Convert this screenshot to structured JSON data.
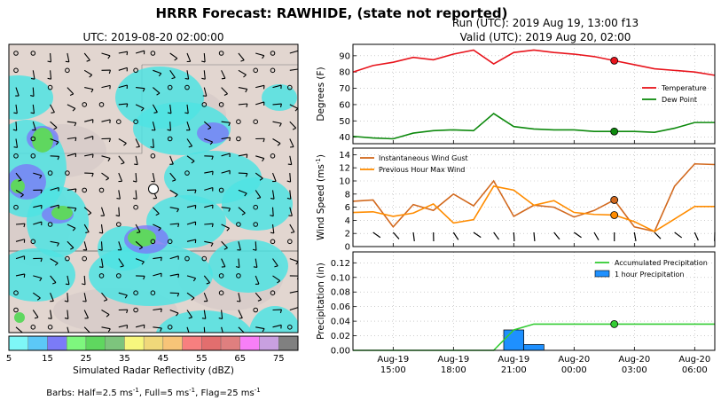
{
  "figure": {
    "title": "HRRR Forecast: RAWHIDE, (state not reported)",
    "run_label": "Run (UTC): 2019 Aug 19, 13:00 f13",
    "valid_label": "Valid (UTC): 2019 Aug 20, 02:00"
  },
  "map_panel": {
    "title": "UTC: 2019-08-20 02:00:00",
    "colorbar_label": "Simulated Radar Reflectivity (dBZ)",
    "colorbar_colors": [
      "#7ef7f7",
      "#5cc8f7",
      "#7b7bf7",
      "#7ef77e",
      "#5fd75f",
      "#7dc47d",
      "#f7f77e",
      "#f0d87a",
      "#f7c478",
      "#f77f7f",
      "#e26e6e",
      "#df7f7f",
      "#f77ff7",
      "#c8a0e0",
      "#808080"
    ],
    "colorbar_ticks": [
      "5",
      "15",
      "25",
      "35",
      "45",
      "55",
      "65",
      "75"
    ],
    "barb_note_prefix": "Barbs: Half=2.5 ms",
    "barb_note_mid1": ", Full=5 ms",
    "barb_note_mid2": ", Flag=25 ms",
    "barb_note_sup": "-1",
    "background_color": "#e2d6d0",
    "echo_color": "#4fe3e3"
  },
  "time_axis": {
    "tick_labels": [
      [
        "Aug-19",
        "15:00"
      ],
      [
        "Aug-19",
        "18:00"
      ],
      [
        "Aug-19",
        "21:00"
      ],
      [
        "Aug-20",
        "00:00"
      ],
      [
        "Aug-20",
        "03:00"
      ],
      [
        "Aug-20",
        "06:00"
      ]
    ],
    "tick_hours": [
      15,
      18,
      21,
      24,
      27,
      30
    ],
    "start_hour": 13,
    "end_hour": 31,
    "marker_hour": 26
  },
  "chart_data": [
    {
      "type": "line",
      "ylabel": "Degrees (F)",
      "ylim": [
        36,
        97
      ],
      "yticks": [
        40,
        50,
        60,
        70,
        80,
        90
      ],
      "grid": true,
      "legend_position": "right",
      "x": [
        13,
        14,
        15,
        16,
        17,
        18,
        19,
        20,
        21,
        22,
        23,
        24,
        25,
        26,
        27,
        28,
        29,
        30,
        31
      ],
      "series": [
        {
          "name": "Temperature",
          "color": "#e8141c",
          "values": [
            80,
            84,
            86,
            89,
            87.5,
            91,
            93.5,
            85,
            92,
            93.5,
            92,
            91,
            89.5,
            87,
            84.5,
            82,
            81,
            80,
            78
          ]
        },
        {
          "name": "Dew Point",
          "color": "#0e8a0e",
          "values": [
            40.5,
            39.5,
            39,
            42.5,
            44,
            44.5,
            44,
            54.5,
            46.5,
            45,
            44.5,
            44.5,
            43.5,
            43.5,
            43.5,
            43,
            45.5,
            49,
            49
          ]
        }
      ]
    },
    {
      "type": "line",
      "ylabel": "Wind Speed (ms",
      "ylabel_sup": "-1",
      "ylim": [
        0,
        15
      ],
      "yticks": [
        0,
        2,
        4,
        6,
        8,
        10,
        12,
        14
      ],
      "grid": true,
      "legend_position": "top-left",
      "x": [
        13,
        14,
        15,
        16,
        17,
        18,
        19,
        20,
        21,
        22,
        23,
        24,
        25,
        26,
        27,
        28,
        29,
        30,
        31
      ],
      "series": [
        {
          "name": "Instantaneous Wind Gust",
          "color": "#d2691e",
          "values": [
            6.9,
            7.1,
            3.0,
            6.4,
            5.5,
            8.0,
            6.2,
            10.0,
            4.6,
            6.3,
            6.0,
            4.5,
            5.5,
            7.1,
            3.0,
            2.3,
            9.2,
            12.6,
            12.5
          ]
        },
        {
          "name": "Previous Hour Max Wind",
          "color": "#ff8c00",
          "values": [
            5.2,
            5.3,
            4.6,
            5.1,
            6.5,
            3.6,
            4.1,
            9.2,
            8.6,
            6.3,
            7.0,
            5.2,
            4.9,
            4.8,
            3.8,
            2.3,
            4.2,
            6.1,
            6.1
          ]
        }
      ]
    },
    {
      "type": "bar",
      "ylabel": "Precipitation (in)",
      "ylim": [
        0,
        0.135
      ],
      "yticks": [
        "0.00",
        "0.02",
        "0.04",
        "0.06",
        "0.08",
        "0.10",
        "0.12"
      ],
      "grid": true,
      "legend_position": "top-right",
      "x": [
        13,
        14,
        15,
        16,
        17,
        18,
        19,
        20,
        21,
        22,
        23,
        24,
        25,
        26,
        27,
        28,
        29,
        30,
        31
      ],
      "series": [
        {
          "name": "Accumulated Precipitation",
          "color": "#33cc33",
          "values": [
            0,
            0,
            0,
            0,
            0,
            0,
            0,
            0,
            0.028,
            0.036,
            0.036,
            0.036,
            0.036,
            0.036,
            0.036,
            0.036,
            0.036,
            0.036,
            0.036
          ]
        },
        {
          "name": "1 hour Precipitation",
          "color": "#1e90ff",
          "values": [
            0,
            0,
            0,
            0,
            0,
            0,
            0,
            0,
            0.028,
            0.008,
            0,
            0,
            0,
            0,
            0,
            0,
            0,
            0,
            0
          ]
        }
      ]
    }
  ]
}
